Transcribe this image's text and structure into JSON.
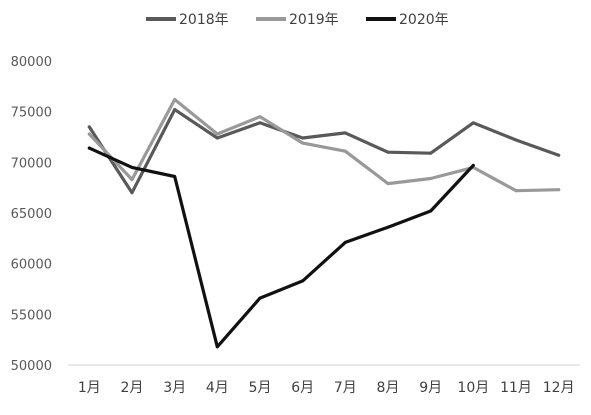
{
  "chart_data": {
    "type": "line",
    "categories": [
      "1月",
      "2月",
      "3月",
      "4月",
      "5月",
      "6月",
      "7月",
      "8月",
      "9月",
      "10月",
      "11月",
      "12月"
    ],
    "series": [
      {
        "name": "2018年",
        "color": "#595959",
        "values": [
          73500,
          67000,
          75200,
          72400,
          73900,
          72400,
          72900,
          71000,
          70900,
          73900,
          72200,
          70700
        ]
      },
      {
        "name": "2019年",
        "color": "#999999",
        "values": [
          72800,
          68300,
          76200,
          72800,
          74500,
          71900,
          71100,
          67900,
          68400,
          69500,
          67200,
          67300
        ]
      },
      {
        "name": "2020年",
        "color": "#111111",
        "values": [
          71400,
          69500,
          68600,
          51800,
          56600,
          58300,
          62100,
          63600,
          65200,
          69700,
          null,
          null
        ]
      }
    ],
    "ylim": [
      50000,
      80000
    ],
    "yticks": [
      "50000",
      "55000",
      "60000",
      "65000",
      "70000",
      "75000",
      "80000"
    ],
    "grid": false,
    "legend_position": "top"
  }
}
